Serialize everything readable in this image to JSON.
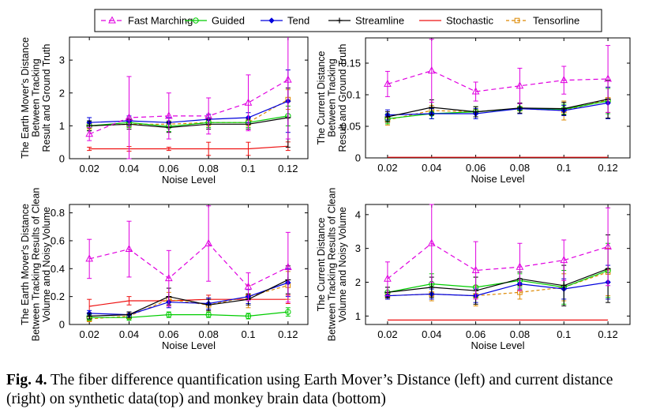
{
  "legend": [
    {
      "name": "Fast Marching",
      "color": "#e000e0",
      "dash": "6,4",
      "marker": "triangle"
    },
    {
      "name": "Guided",
      "color": "#00cc00",
      "dash": "",
      "marker": "circle"
    },
    {
      "name": "Tend",
      "color": "#0000dd",
      "dash": "",
      "marker": "diamond"
    },
    {
      "name": "Streamline",
      "color": "#000000",
      "dash": "",
      "marker": "plus"
    },
    {
      "name": "Stochastic",
      "color": "#ee1111",
      "dash": "",
      "marker": "none"
    },
    {
      "name": "Tensorline",
      "color": "#dd8800",
      "dash": "4,3",
      "marker": "square"
    }
  ],
  "caption": {
    "label": "Fig. 4.",
    "text": " The fiber difference quantification using Earth Mover’s Distance (left) and current distance (right) on synthetic data(top) and monkey brain data (bottom)"
  },
  "chart_data": [
    {
      "type": "line",
      "xlabel": "Noise Level",
      "ylabel": [
        "The Earth Mover's Distance",
        "Between Tracking",
        "Result and Ground Truth"
      ],
      "x": [
        0.02,
        0.04,
        0.06,
        0.08,
        0.1,
        0.12
      ],
      "xticks": [
        "0.02",
        "0.04",
        "0.06",
        "0.08",
        "0.1",
        "0.12"
      ],
      "xlim": [
        0.01,
        0.13
      ],
      "ylim": [
        0,
        3.7
      ],
      "yticks": [
        0,
        1,
        2,
        3
      ],
      "yticklabels": [
        "0",
        "1",
        "2",
        "3"
      ],
      "series": [
        {
          "name": "Fast Marching",
          "values": [
            0.75,
            1.25,
            1.3,
            1.3,
            1.7,
            2.4
          ],
          "err": [
            0.2,
            1.25,
            0.7,
            0.55,
            0.85,
            1.8
          ]
        },
        {
          "name": "Guided",
          "values": [
            1.0,
            1.1,
            0.98,
            1.1,
            1.1,
            1.3
          ],
          "err": [
            0.15,
            0.15,
            0.15,
            0.15,
            0.15,
            0.3
          ]
        },
        {
          "name": "Tend",
          "values": [
            1.1,
            1.15,
            1.1,
            1.2,
            1.25,
            1.75
          ],
          "err": [
            0.15,
            0.15,
            0.15,
            0.15,
            0.15,
            0.95
          ]
        },
        {
          "name": "Streamline",
          "values": [
            1.0,
            1.05,
            0.95,
            1.05,
            1.05,
            1.25
          ],
          "err": [
            0.15,
            0.15,
            0.15,
            0.15,
            0.15,
            0.9
          ]
        },
        {
          "name": "Stochastic",
          "values": [
            0.3,
            0.3,
            0.3,
            0.3,
            0.3,
            0.38
          ],
          "err": [
            0.05,
            0.07,
            0.05,
            0.2,
            0.2,
            0.13
          ]
        },
        {
          "name": "Tensorline",
          "values": [
            1.0,
            1.05,
            1.05,
            1.1,
            1.1,
            1.8
          ],
          "err": [
            0.1,
            0.1,
            0.1,
            0.1,
            0.1,
            0.3
          ]
        }
      ]
    },
    {
      "type": "line",
      "xlabel": "Noise Level",
      "ylabel": [
        "The Current Distance",
        "Between Tracking",
        "Result and Ground Truth"
      ],
      "x": [
        0.02,
        0.04,
        0.06,
        0.08,
        0.1,
        0.12
      ],
      "xticks": [
        "0.02",
        "0.04",
        "0.06",
        "0.08",
        "0.1",
        "0.12"
      ],
      "xlim": [
        0.01,
        0.13
      ],
      "ylim": [
        0,
        0.19
      ],
      "yticks": [
        0,
        0.05,
        0.1,
        0.15
      ],
      "yticklabels": [
        "0",
        "0.05",
        "0.1",
        "0.15"
      ],
      "series": [
        {
          "name": "Fast Marching",
          "values": [
            0.117,
            0.138,
            0.105,
            0.114,
            0.123,
            0.125
          ],
          "err": [
            0.02,
            0.05,
            0.015,
            0.028,
            0.022,
            0.053
          ]
        },
        {
          "name": "Guided",
          "values": [
            0.062,
            0.07,
            0.073,
            0.078,
            0.077,
            0.09
          ],
          "err": [
            0.008,
            0.008,
            0.008,
            0.008,
            0.008,
            0.02
          ]
        },
        {
          "name": "Tend",
          "values": [
            0.068,
            0.07,
            0.07,
            0.078,
            0.075,
            0.087
          ],
          "err": [
            0.008,
            0.008,
            0.008,
            0.008,
            0.008,
            0.025
          ]
        },
        {
          "name": "Streamline",
          "values": [
            0.065,
            0.08,
            0.073,
            0.079,
            0.078,
            0.093
          ],
          "err": [
            0.008,
            0.012,
            0.008,
            0.008,
            0.01,
            0.03
          ]
        },
        {
          "name": "Stochastic",
          "values": [
            0.001,
            0.001,
            0.001,
            0.001,
            0.001,
            0.001
          ],
          "err": [
            0,
            0,
            0,
            0,
            0,
            0
          ]
        },
        {
          "name": "Tensorline",
          "values": [
            0.06,
            0.075,
            0.073,
            0.078,
            0.075,
            0.092
          ],
          "err": [
            0.008,
            0.008,
            0.008,
            0.008,
            0.015,
            0.02
          ]
        }
      ]
    },
    {
      "type": "line",
      "xlabel": "Noise Level",
      "ylabel": [
        "The Earth Mover's Distance",
        "Between Tracking Results of Clean",
        "Volume and Noisy Volume"
      ],
      "x": [
        0.02,
        0.04,
        0.06,
        0.08,
        0.1,
        0.12
      ],
      "xticks": [
        "0.02",
        "0.04",
        "0.06",
        "0.08",
        "0.1",
        "0.12"
      ],
      "xlim": [
        0.01,
        0.13
      ],
      "ylim": [
        0,
        0.86
      ],
      "yticks": [
        0,
        0.2,
        0.4,
        0.6,
        0.8
      ],
      "yticklabels": [
        "0",
        "0.2",
        "0.4",
        "0.6",
        "0.8"
      ],
      "series": [
        {
          "name": "Fast Marching",
          "values": [
            0.47,
            0.54,
            0.33,
            0.58,
            0.27,
            0.41
          ],
          "err": [
            0.14,
            0.2,
            0.2,
            0.27,
            0.1,
            0.25
          ]
        },
        {
          "name": "Guided",
          "values": [
            0.05,
            0.05,
            0.07,
            0.07,
            0.06,
            0.09
          ],
          "err": [
            0.02,
            0.02,
            0.02,
            0.02,
            0.02,
            0.03
          ]
        },
        {
          "name": "Tend",
          "values": [
            0.08,
            0.07,
            0.16,
            0.15,
            0.2,
            0.3
          ],
          "err": [
            0.02,
            0.02,
            0.04,
            0.04,
            0.05,
            0.1
          ]
        },
        {
          "name": "Streamline",
          "values": [
            0.06,
            0.07,
            0.2,
            0.14,
            0.18,
            0.32
          ],
          "err": [
            0.02,
            0.02,
            0.06,
            0.04,
            0.04,
            0.1
          ]
        },
        {
          "name": "Stochastic",
          "values": [
            0.13,
            0.17,
            0.17,
            0.18,
            0.18,
            0.18
          ],
          "err": [
            0.05,
            0.03,
            0.03,
            0.03,
            0.03,
            0.03
          ]
        },
        {
          "name": "Tensorline",
          "values": [
            0.04,
            0.06,
            0.18,
            0.14,
            0.2,
            0.28
          ],
          "err": [
            0.02,
            0.02,
            0.05,
            0.05,
            0.08,
            0.1
          ]
        }
      ]
    },
    {
      "type": "line",
      "xlabel": "Noise Level",
      "ylabel": [
        "The Current Distance",
        "Between Tracking Results of Clean",
        "Volume and Noisy Volume"
      ],
      "x": [
        0.02,
        0.04,
        0.06,
        0.08,
        0.1,
        0.12
      ],
      "xticks": [
        "0.02",
        "0.04",
        "0.06",
        "0.08",
        "0.1",
        "0.12"
      ],
      "xlim": [
        0.01,
        0.13
      ],
      "ylim": [
        0.75,
        4.3
      ],
      "yticks": [
        1,
        2,
        3,
        4
      ],
      "yticklabels": [
        "1",
        "2",
        "3",
        "4"
      ],
      "series": [
        {
          "name": "Fast Marching",
          "values": [
            2.1,
            3.15,
            2.35,
            2.45,
            2.65,
            3.05
          ],
          "err": [
            0.5,
            1.15,
            0.85,
            0.7,
            0.6,
            1.15
          ]
        },
        {
          "name": "Guided",
          "values": [
            1.7,
            1.95,
            1.85,
            2.05,
            1.85,
            2.35
          ],
          "err": [
            0.15,
            0.3,
            0.3,
            0.2,
            0.5,
            0.8
          ]
        },
        {
          "name": "Tend",
          "values": [
            1.6,
            1.65,
            1.6,
            1.95,
            1.8,
            2.0
          ],
          "err": [
            0.1,
            0.15,
            0.2,
            0.15,
            0.3,
            0.5
          ]
        },
        {
          "name": "Streamline",
          "values": [
            1.7,
            1.85,
            1.75,
            2.1,
            1.9,
            2.4
          ],
          "err": [
            0.15,
            0.3,
            0.4,
            0.2,
            0.6,
            1.0
          ]
        },
        {
          "name": "Stochastic",
          "values": [
            0.88,
            0.88,
            0.88,
            0.88,
            0.88,
            0.88
          ],
          "err": [
            0,
            0,
            0,
            0,
            0,
            0
          ]
        },
        {
          "name": "Tensorline",
          "values": [
            1.6,
            1.65,
            1.6,
            1.7,
            1.85,
            2.3
          ],
          "err": [
            0.1,
            0.2,
            0.3,
            0.2,
            0.4,
            0.7
          ]
        }
      ]
    }
  ]
}
